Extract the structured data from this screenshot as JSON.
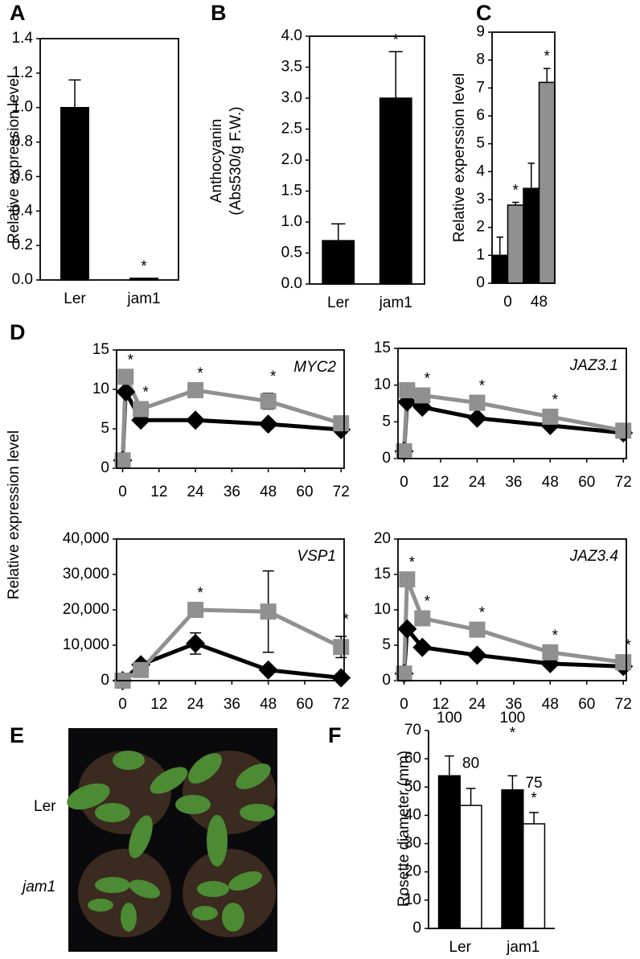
{
  "chart_data": [
    {
      "type": "bar",
      "letter": "A",
      "ylabel": "Relative expression level",
      "frame": true,
      "categories": [
        "Ler",
        "jam1"
      ],
      "series": [
        {
          "color": "#000000",
          "values": [
            1.0,
            0.01
          ],
          "errors": [
            0.16,
            null
          ],
          "significance": [
            null,
            "*"
          ]
        }
      ],
      "ylim": [
        0,
        1.4
      ],
      "yticks": [
        {
          "value": 0,
          "label": "0.0"
        },
        0.2,
        0.4,
        0.6,
        0.8,
        {
          "value": 1,
          "label": "1.0"
        },
        1.2,
        1.4
      ]
    },
    {
      "type": "bar",
      "letter": "B",
      "ylabel": [
        "Anthocyanin",
        "(Abs530/g F.W.)"
      ],
      "frame": true,
      "categories": [
        "Ler",
        "jam1"
      ],
      "series": [
        {
          "color": "#000000",
          "values": [
            0.7,
            3.0
          ],
          "errors": [
            0.27,
            0.75
          ],
          "significance": [
            null,
            "*"
          ]
        }
      ],
      "ylim": [
        0,
        4
      ],
      "yticks": [
        {
          "value": 0,
          "label": "0.0"
        },
        0.5,
        {
          "value": 1,
          "label": "1.0"
        },
        1.5,
        {
          "value": 2,
          "label": "2.0"
        },
        2.5,
        {
          "value": 3,
          "label": "3.0"
        },
        3.5,
        {
          "value": 4,
          "label": "4.0"
        }
      ]
    },
    {
      "type": "bar",
      "letter": "C",
      "ylabel": "Relative experssion level",
      "frame": true,
      "categories": [
        "0",
        "48"
      ],
      "series": [
        {
          "color": "#000000",
          "values": [
            1.0,
            3.4
          ],
          "errors": [
            0.65,
            0.9
          ],
          "significance": [
            null,
            null
          ]
        },
        {
          "color": "#909090",
          "values": [
            2.8,
            7.2
          ],
          "errors": [
            0.1,
            0.5
          ],
          "significance": [
            "*",
            "*"
          ]
        }
      ],
      "ylim": [
        0,
        9
      ],
      "yticks": [
        0,
        1,
        2,
        3,
        4,
        5,
        6,
        7,
        8,
        9
      ]
    },
    {
      "type": "line",
      "letter": "D",
      "ylabel": "Relative expression level",
      "title": "MYC2",
      "frame": true,
      "x": [
        0,
        1,
        6,
        24,
        48,
        72
      ],
      "series": [
        {
          "color": "#000000",
          "marker": "diamond",
          "values": [
            1,
            9.7,
            6.1,
            6.1,
            5.6,
            4.9
          ],
          "errors": [
            null,
            null,
            null,
            null,
            null,
            null
          ],
          "significance": [
            null,
            null,
            null,
            null,
            null,
            null
          ]
        },
        {
          "color": "#909090",
          "marker": "square",
          "values": [
            1,
            11.6,
            7.5,
            9.9,
            8.5,
            5.7
          ],
          "errors": [
            null,
            null,
            null,
            null,
            1.0,
            null
          ],
          "significance": [
            null,
            "*",
            "*",
            "*",
            "*",
            null
          ]
        }
      ],
      "xlim": [
        -2,
        73
      ],
      "xticks": [
        0,
        12,
        24,
        36,
        48,
        60,
        72
      ],
      "ylim": [
        0,
        15
      ],
      "yticks": [
        0,
        5,
        10,
        15
      ]
    },
    {
      "type": "line",
      "title": "JAZ3.1",
      "frame": true,
      "x": [
        0,
        1,
        6,
        24,
        48,
        72
      ],
      "series": [
        {
          "color": "#000000",
          "marker": "diamond",
          "values": [
            1,
            7.7,
            7.0,
            5.5,
            4.5,
            3.5
          ],
          "errors": [
            null,
            null,
            null,
            null,
            null,
            null
          ],
          "significance": [
            null,
            null,
            null,
            null,
            null,
            null
          ]
        },
        {
          "color": "#909090",
          "marker": "square",
          "values": [
            1,
            9.3,
            8.6,
            7.6,
            5.7,
            3.8
          ],
          "errors": [
            null,
            null,
            null,
            null,
            null,
            null
          ],
          "significance": [
            null,
            null,
            "*",
            "*",
            "*",
            null
          ]
        }
      ],
      "xlim": [
        -2,
        73
      ],
      "xticks": [
        0,
        12,
        24,
        36,
        48,
        60,
        72
      ],
      "ylim": [
        0,
        15
      ],
      "yticks": [
        0,
        5,
        10,
        15
      ]
    },
    {
      "type": "line",
      "title": "VSP1",
      "frame": true,
      "x": [
        0,
        6,
        24,
        48,
        72
      ],
      "series": [
        {
          "color": "#000000",
          "marker": "diamond",
          "values": [
            0,
            4500,
            10500,
            3000,
            800
          ],
          "errors": [
            null,
            null,
            3000,
            null,
            null
          ],
          "significance": [
            null,
            null,
            null,
            null,
            null
          ]
        },
        {
          "color": "#909090",
          "marker": "square",
          "values": [
            0,
            3000,
            20000,
            19500,
            9500
          ],
          "errors": [
            null,
            null,
            null,
            11500,
            3000
          ],
          "significance": [
            null,
            null,
            "*",
            null,
            "*"
          ]
        }
      ],
      "xlim": [
        -2,
        73
      ],
      "xticks": [
        0,
        12,
        24,
        36,
        48,
        60,
        72
      ],
      "ylim": [
        0,
        40000
      ],
      "yticks": [
        0,
        {
          "value": 10000,
          "label": "10,000"
        },
        {
          "value": 20000,
          "label": "20,000"
        },
        {
          "value": 30000,
          "label": "30,000"
        },
        {
          "value": 40000,
          "label": "40,000"
        }
      ]
    },
    {
      "type": "line",
      "title": "JAZ3.4",
      "frame": true,
      "x": [
        0,
        1,
        6,
        24,
        48,
        72
      ],
      "series": [
        {
          "color": "#000000",
          "marker": "diamond",
          "values": [
            1,
            7.3,
            4.7,
            3.6,
            2.4,
            2.0
          ],
          "errors": [
            null,
            null,
            null,
            null,
            null,
            null
          ],
          "significance": [
            null,
            null,
            null,
            null,
            null,
            null
          ]
        },
        {
          "color": "#909090",
          "marker": "square",
          "values": [
            1,
            14.3,
            8.8,
            7.2,
            4.0,
            2.6
          ],
          "errors": [
            null,
            null,
            null,
            null,
            null,
            null
          ],
          "significance": [
            null,
            "*",
            "*",
            "*",
            "*",
            "*"
          ]
        }
      ],
      "xlim": [
        -2,
        73
      ],
      "xticks": [
        0,
        12,
        24,
        36,
        48,
        60,
        72
      ],
      "ylim": [
        0,
        20
      ],
      "yticks": [
        0,
        5,
        10,
        15,
        20
      ]
    },
    {
      "type": "bar",
      "letter": "F",
      "ylabel": "Rosette diameter (mm)",
      "frame": false,
      "categories": [
        "Ler",
        "jam1"
      ],
      "series": [
        {
          "color": "#000000",
          "values": [
            54,
            49
          ],
          "errors": [
            7,
            5
          ],
          "relative_percent": [
            100,
            100
          ],
          "significance": [
            null,
            "*"
          ]
        },
        {
          "color": "#ffffff",
          "values": [
            43.5,
            37
          ],
          "errors": [
            6,
            4
          ],
          "relative_percent": [
            80,
            75
          ],
          "significance": [
            null,
            "*"
          ]
        }
      ],
      "ylim": [
        0,
        70
      ],
      "yticks": [
        0,
        10,
        20,
        30,
        40,
        50,
        60,
        70
      ]
    }
  ],
  "photo": {
    "letter": "E",
    "rows": [
      "Ler",
      "jam1"
    ]
  }
}
